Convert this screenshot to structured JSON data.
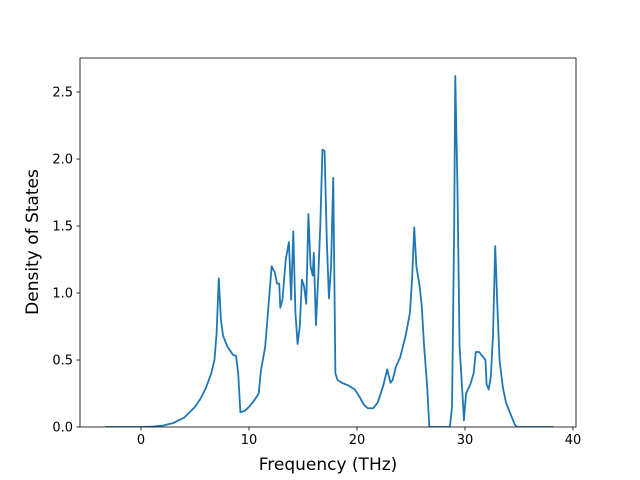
{
  "chart_data": {
    "type": "line",
    "xlabel": "Frequency (THz)",
    "ylabel": "Density of States",
    "color": "#1f77b4",
    "x": [
      -3.3,
      0,
      1,
      2,
      3,
      4,
      5,
      5.5,
      6,
      6.5,
      6.8,
      7.0,
      7.2,
      7.4,
      7.6,
      8,
      8.5,
      8.8,
      9.0,
      9.2,
      9.6,
      10,
      10.5,
      10.9,
      11.1,
      11.5,
      11.8,
      12.1,
      12.4,
      12.6,
      12.8,
      12.9,
      13.1,
      13.4,
      13.7,
      13.9,
      14.1,
      14.3,
      14.5,
      14.7,
      14.9,
      15.1,
      15.3,
      15.5,
      15.7,
      15.9,
      16.0,
      16.2,
      16.4,
      16.6,
      16.8,
      17.0,
      17.2,
      17.4,
      17.6,
      17.8,
      18.0,
      18.2,
      18.6,
      19.2,
      19.8,
      20.2,
      20.6,
      21,
      21.5,
      21.9,
      22.4,
      22.8,
      23.1,
      23.3,
      23.6,
      24,
      24.5,
      24.9,
      25.1,
      25.3,
      25.5,
      25.8,
      26,
      26.2,
      26.5,
      26.7,
      28.6,
      28.8,
      29.0,
      29.1,
      29.3,
      29.5,
      29.8,
      29.9,
      30.1,
      30.5,
      30.8,
      31.0,
      31.3,
      31.6,
      31.9,
      32.0,
      32.2,
      32.4,
      32.6,
      32.8,
      33.0,
      33.2,
      33.5,
      33.8,
      34.2,
      34.6,
      34.8,
      38.2
    ],
    "values": [
      0,
      0,
      0.003,
      0.01,
      0.03,
      0.07,
      0.15,
      0.21,
      0.29,
      0.4,
      0.5,
      0.7,
      1.11,
      0.8,
      0.68,
      0.6,
      0.54,
      0.53,
      0.4,
      0.11,
      0.12,
      0.15,
      0.2,
      0.25,
      0.42,
      0.6,
      0.9,
      1.2,
      1.15,
      1.07,
      1.07,
      0.89,
      0.95,
      1.25,
      1.38,
      0.95,
      1.46,
      0.85,
      0.62,
      0.75,
      1.1,
      1.05,
      0.92,
      1.59,
      1.2,
      1.13,
      1.3,
      0.76,
      1.1,
      1.5,
      2.07,
      2.06,
      1.4,
      0.96,
      1.2,
      1.86,
      0.4,
      0.35,
      0.33,
      0.31,
      0.28,
      0.23,
      0.17,
      0.14,
      0.14,
      0.18,
      0.3,
      0.43,
      0.33,
      0.35,
      0.45,
      0.52,
      0.68,
      0.85,
      1.1,
      1.49,
      1.2,
      1.05,
      0.9,
      0.62,
      0.3,
      0,
      0,
      0.15,
      1.5,
      2.62,
      1.8,
      0.6,
      0.2,
      0.05,
      0.25,
      0.32,
      0.4,
      0.56,
      0.56,
      0.53,
      0.5,
      0.32,
      0.28,
      0.38,
      0.7,
      1.35,
      0.9,
      0.5,
      0.3,
      0.18,
      0.1,
      0.02,
      0,
      0
    ],
    "xlim": [
      -5.65,
      40.28
    ],
    "xticks": [
      0,
      10,
      20,
      30,
      40
    ],
    "ylim": [
      0,
      2.754
    ],
    "yticks": [
      {
        "value": 0,
        "label": "0.0"
      },
      0.5,
      {
        "value": 1,
        "label": "1.0"
      },
      1.5,
      {
        "value": 2,
        "label": "2.0"
      },
      2.5
    ]
  }
}
